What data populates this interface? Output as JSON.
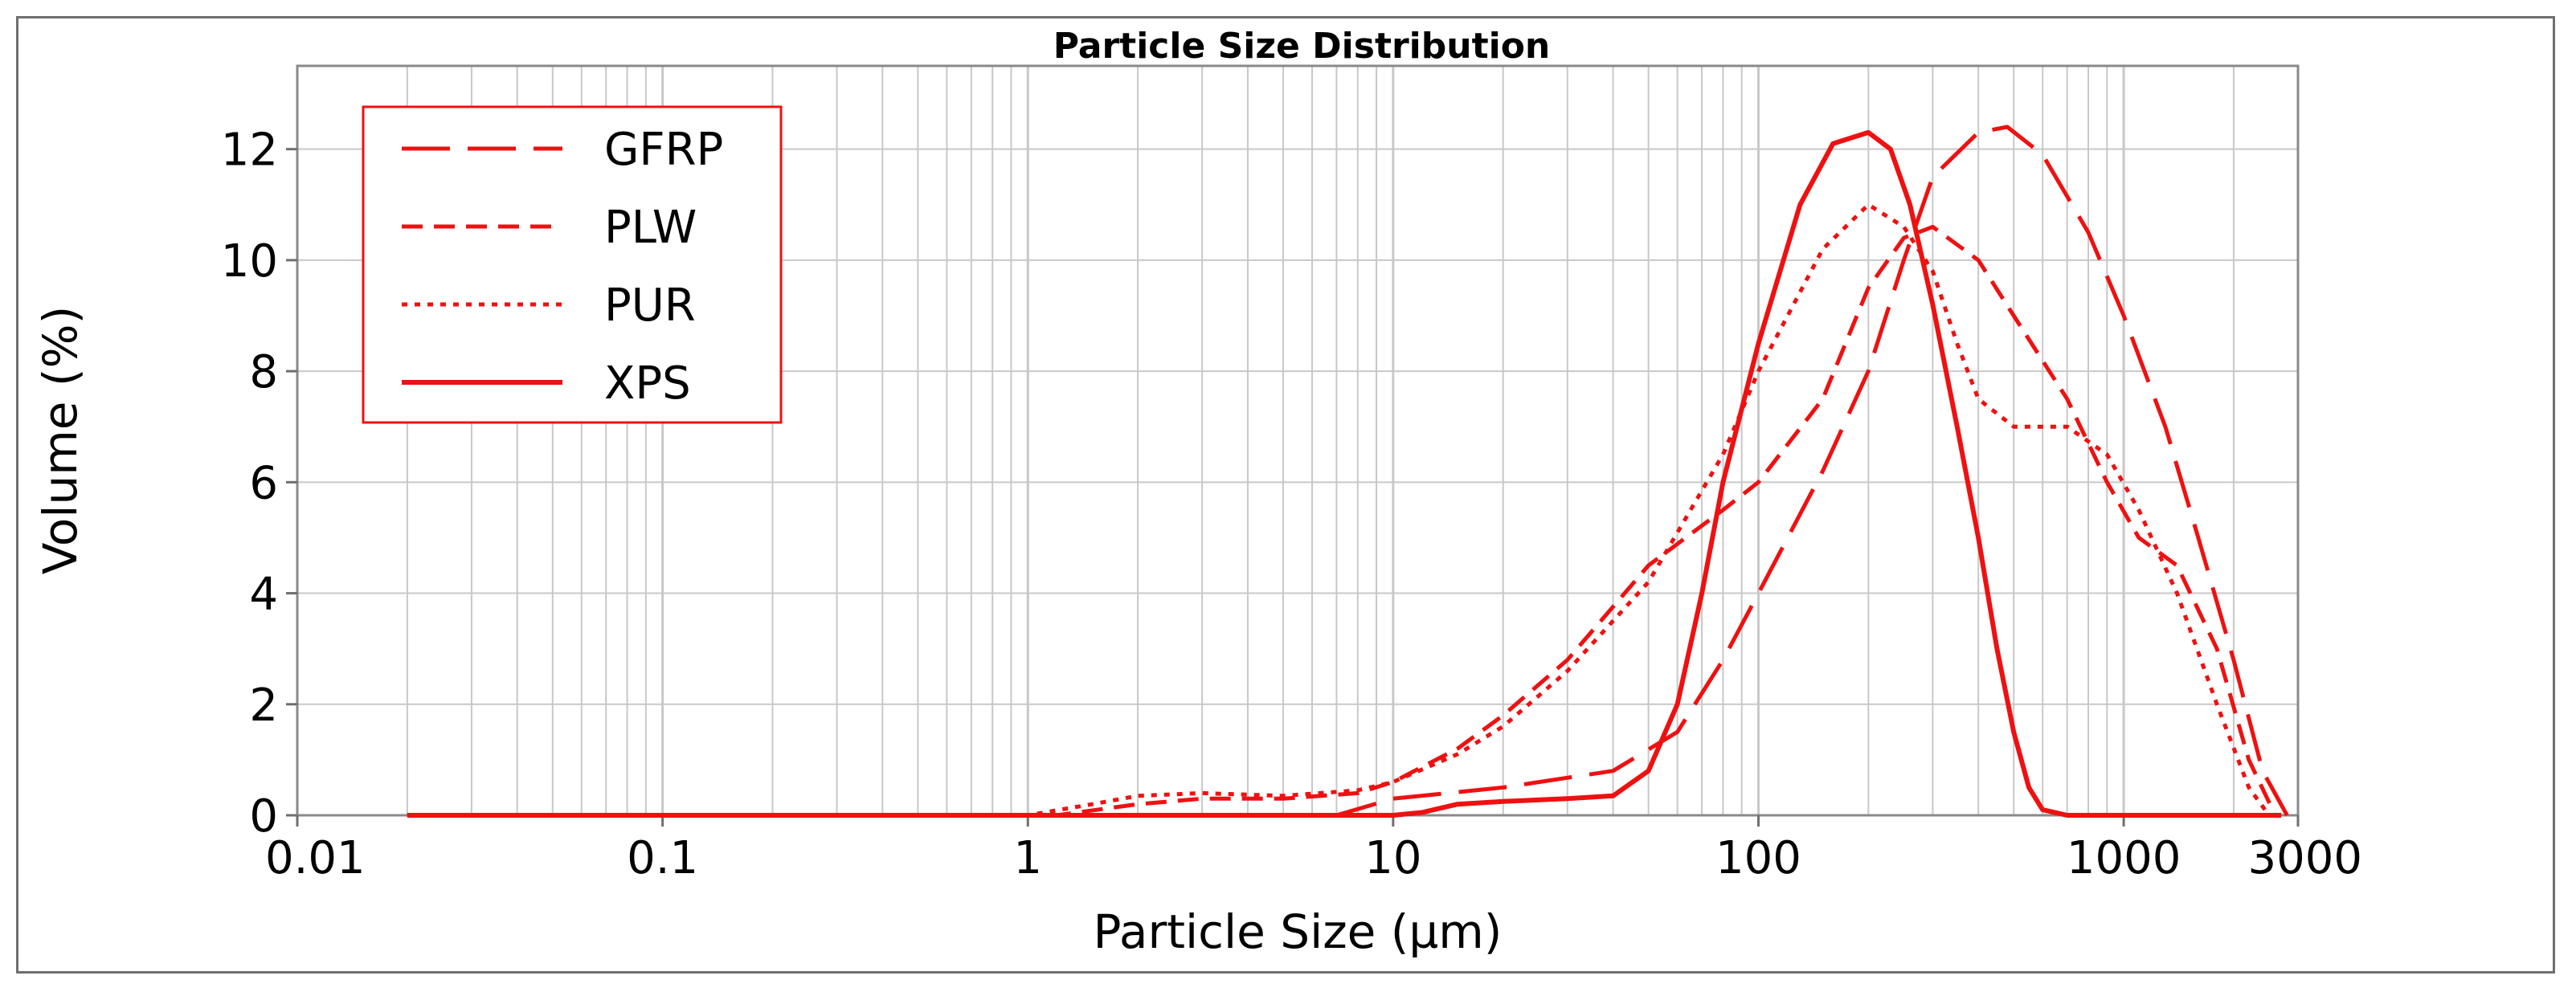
{
  "chart_data": {
    "type": "line",
    "title": "Particle Size Distribution",
    "xlabel": "Particle Size (µm)",
    "ylabel": "Volume (%)",
    "xscale": "log",
    "xlim": [
      0.01,
      3000
    ],
    "ylim": [
      0,
      13.5
    ],
    "x_ticks": [
      0.01,
      0.1,
      1,
      10,
      100,
      1000,
      3000
    ],
    "x_tick_labels": [
      "0.01",
      "0.1",
      "1",
      "10",
      "100",
      "1000",
      "3000"
    ],
    "y_ticks": [
      0,
      2,
      4,
      6,
      8,
      10,
      12
    ],
    "y_tick_labels": [
      "0",
      "2",
      "4",
      "6",
      "8",
      "10",
      "12"
    ],
    "grid": true,
    "legend_position": "top-left",
    "series": [
      {
        "name": "GFRP",
        "color": "#ee1111",
        "dash": "long-dash",
        "points": [
          [
            0.02,
            0
          ],
          [
            7,
            0
          ],
          [
            10,
            0.3
          ],
          [
            20,
            0.5
          ],
          [
            40,
            0.8
          ],
          [
            60,
            1.5
          ],
          [
            80,
            2.8
          ],
          [
            100,
            4.0
          ],
          [
            150,
            6.2
          ],
          [
            200,
            8.0
          ],
          [
            250,
            10.0
          ],
          [
            300,
            11.5
          ],
          [
            400,
            12.3
          ],
          [
            480,
            12.4
          ],
          [
            600,
            11.9
          ],
          [
            800,
            10.5
          ],
          [
            1000,
            9.0
          ],
          [
            1300,
            7.0
          ],
          [
            1600,
            5.0
          ],
          [
            2000,
            2.8
          ],
          [
            2400,
            0.8
          ],
          [
            2800,
            0
          ]
        ]
      },
      {
        "name": "PLW",
        "color": "#ee1111",
        "dash": "dashed",
        "points": [
          [
            0.02,
            0
          ],
          [
            1.2,
            0
          ],
          [
            2,
            0.2
          ],
          [
            3,
            0.3
          ],
          [
            5,
            0.3
          ],
          [
            8,
            0.4
          ],
          [
            10,
            0.6
          ],
          [
            15,
            1.2
          ],
          [
            20,
            1.8
          ],
          [
            30,
            2.8
          ],
          [
            50,
            4.5
          ],
          [
            80,
            5.5
          ],
          [
            100,
            6.0
          ],
          [
            150,
            7.5
          ],
          [
            200,
            9.5
          ],
          [
            250,
            10.4
          ],
          [
            300,
            10.6
          ],
          [
            400,
            10.0
          ],
          [
            500,
            9.0
          ],
          [
            700,
            7.5
          ],
          [
            900,
            6.0
          ],
          [
            1100,
            5.0
          ],
          [
            1400,
            4.5
          ],
          [
            1800,
            3.0
          ],
          [
            2200,
            1.0
          ],
          [
            2600,
            0
          ]
        ]
      },
      {
        "name": "PUR",
        "color": "#ee1111",
        "dash": "dotted",
        "points": [
          [
            0.02,
            0
          ],
          [
            1,
            0
          ],
          [
            1.5,
            0.2
          ],
          [
            2,
            0.35
          ],
          [
            3,
            0.4
          ],
          [
            5,
            0.35
          ],
          [
            8,
            0.45
          ],
          [
            10,
            0.6
          ],
          [
            15,
            1.1
          ],
          [
            20,
            1.6
          ],
          [
            30,
            2.6
          ],
          [
            50,
            4.2
          ],
          [
            80,
            6.5
          ],
          [
            100,
            8.0
          ],
          [
            150,
            10.2
          ],
          [
            200,
            11.0
          ],
          [
            250,
            10.6
          ],
          [
            300,
            9.8
          ],
          [
            350,
            8.5
          ],
          [
            400,
            7.5
          ],
          [
            500,
            7.0
          ],
          [
            700,
            7.0
          ],
          [
            900,
            6.5
          ],
          [
            1100,
            5.5
          ],
          [
            1400,
            4.0
          ],
          [
            1800,
            2.0
          ],
          [
            2200,
            0.5
          ],
          [
            2500,
            0
          ]
        ]
      },
      {
        "name": "XPS",
        "color": "#ee1111",
        "dash": "solid",
        "points": [
          [
            0.02,
            0
          ],
          [
            10,
            0
          ],
          [
            12,
            0.05
          ],
          [
            15,
            0.2
          ],
          [
            20,
            0.25
          ],
          [
            30,
            0.3
          ],
          [
            40,
            0.35
          ],
          [
            50,
            0.8
          ],
          [
            60,
            2.0
          ],
          [
            70,
            4.0
          ],
          [
            80,
            6.0
          ],
          [
            100,
            8.5
          ],
          [
            130,
            11.0
          ],
          [
            160,
            12.1
          ],
          [
            200,
            12.3
          ],
          [
            230,
            12.0
          ],
          [
            260,
            11.0
          ],
          [
            300,
            9.2
          ],
          [
            350,
            7.0
          ],
          [
            400,
            5.0
          ],
          [
            450,
            3.0
          ],
          [
            500,
            1.5
          ],
          [
            550,
            0.5
          ],
          [
            600,
            0.1
          ],
          [
            700,
            0
          ],
          [
            2700,
            0
          ]
        ]
      }
    ]
  }
}
